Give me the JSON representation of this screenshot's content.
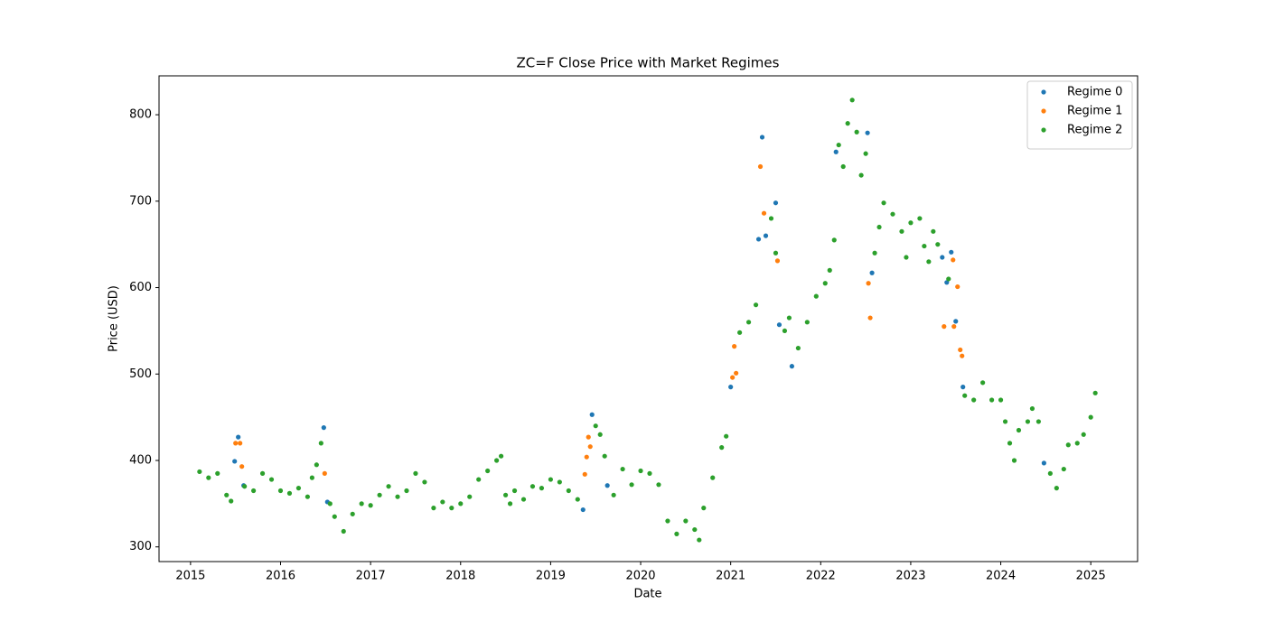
{
  "chart_data": {
    "type": "scatter",
    "title": "ZC=F Close Price with Market Regimes",
    "xlabel": "Date",
    "ylabel": "Price (USD)",
    "xlim": [
      2014.65,
      2025.52
    ],
    "xticks": [
      2015,
      2016,
      2017,
      2018,
      2019,
      2020,
      2021,
      2022,
      2023,
      2024,
      2025
    ],
    "ylim": [
      283,
      845
    ],
    "yticks": [
      300,
      400,
      500,
      600,
      700,
      800
    ],
    "legend": "upper right",
    "grid": false,
    "series": [
      {
        "name": "Regime 0",
        "color": "#1f77b4",
        "x": [
          2015.49,
          2015.53,
          2015.59,
          2016.48,
          2016.52,
          2019.36,
          2019.46,
          2019.63,
          2021.0,
          2021.31,
          2021.35,
          2021.39,
          2021.5,
          2021.54,
          2021.68,
          2022.17,
          2022.52,
          2022.57,
          2023.35,
          2023.4,
          2023.45,
          2023.5,
          2023.58,
          2024.48
        ],
        "values": [
          399,
          427,
          371,
          438,
          352,
          343,
          453,
          371,
          485,
          656,
          774,
          660,
          698,
          557,
          509,
          757,
          779,
          617,
          635,
          606,
          641,
          561,
          485,
          397
        ]
      },
      {
        "name": "Regime 1",
        "color": "#ff7f0e",
        "x": [
          2015.5,
          2015.55,
          2015.57,
          2016.49,
          2019.38,
          2019.4,
          2019.42,
          2019.44,
          2021.02,
          2021.04,
          2021.06,
          2021.33,
          2021.37,
          2021.52,
          2022.53,
          2022.55,
          2023.37,
          2023.47,
          2023.48,
          2023.52,
          2023.55,
          2023.57
        ],
        "values": [
          420,
          420,
          393,
          385,
          384,
          404,
          427,
          416,
          496,
          532,
          501,
          740,
          686,
          631,
          605,
          565,
          555,
          632,
          555,
          601,
          528,
          521
        ]
      },
      {
        "name": "Regime 2",
        "color": "#2ca02c",
        "x": [
          2015.1,
          2015.2,
          2015.3,
          2015.4,
          2015.45,
          2015.6,
          2015.7,
          2015.8,
          2015.9,
          2016.0,
          2016.1,
          2016.2,
          2016.3,
          2016.35,
          2016.4,
          2016.45,
          2016.55,
          2016.6,
          2016.7,
          2016.8,
          2016.9,
          2017.0,
          2017.1,
          2017.2,
          2017.3,
          2017.4,
          2017.5,
          2017.6,
          2017.7,
          2017.8,
          2017.9,
          2018.0,
          2018.1,
          2018.2,
          2018.3,
          2018.4,
          2018.45,
          2018.5,
          2018.55,
          2018.6,
          2018.7,
          2018.8,
          2018.9,
          2019.0,
          2019.1,
          2019.2,
          2019.3,
          2019.5,
          2019.55,
          2019.6,
          2019.7,
          2019.8,
          2019.9,
          2020.0,
          2020.1,
          2020.2,
          2020.3,
          2020.4,
          2020.5,
          2020.6,
          2020.65,
          2020.7,
          2020.8,
          2020.9,
          2020.95,
          2021.1,
          2021.2,
          2021.28,
          2021.45,
          2021.5,
          2021.6,
          2021.65,
          2021.75,
          2021.85,
          2021.95,
          2022.05,
          2022.1,
          2022.15,
          2022.2,
          2022.25,
          2022.3,
          2022.35,
          2022.4,
          2022.45,
          2022.5,
          2022.6,
          2022.65,
          2022.7,
          2022.8,
          2022.9,
          2022.95,
          2023.0,
          2023.1,
          2023.15,
          2023.2,
          2023.25,
          2023.3,
          2023.42,
          2023.6,
          2023.7,
          2023.8,
          2023.9,
          2024.0,
          2024.05,
          2024.1,
          2024.15,
          2024.2,
          2024.3,
          2024.35,
          2024.42,
          2024.55,
          2024.62,
          2024.7,
          2024.75,
          2024.85,
          2024.92,
          2025.0,
          2025.05
        ],
        "values": [
          387,
          380,
          385,
          360,
          353,
          370,
          365,
          385,
          378,
          365,
          362,
          368,
          358,
          380,
          395,
          420,
          350,
          335,
          318,
          338,
          350,
          348,
          360,
          370,
          358,
          365,
          385,
          375,
          345,
          352,
          345,
          350,
          358,
          378,
          388,
          400,
          405,
          360,
          350,
          365,
          355,
          370,
          368,
          378,
          375,
          365,
          355,
          440,
          430,
          405,
          360,
          390,
          372,
          388,
          385,
          372,
          330,
          315,
          330,
          320,
          308,
          345,
          380,
          415,
          428,
          548,
          560,
          580,
          680,
          640,
          550,
          565,
          530,
          560,
          590,
          605,
          620,
          655,
          765,
          740,
          790,
          817,
          780,
          730,
          755,
          640,
          670,
          698,
          685,
          665,
          635,
          675,
          680,
          648,
          630,
          665,
          650,
          610,
          475,
          470,
          490,
          470,
          470,
          445,
          420,
          400,
          435,
          445,
          460,
          445,
          385,
          368,
          390,
          418,
          420,
          430,
          450,
          478
        ]
      }
    ]
  }
}
